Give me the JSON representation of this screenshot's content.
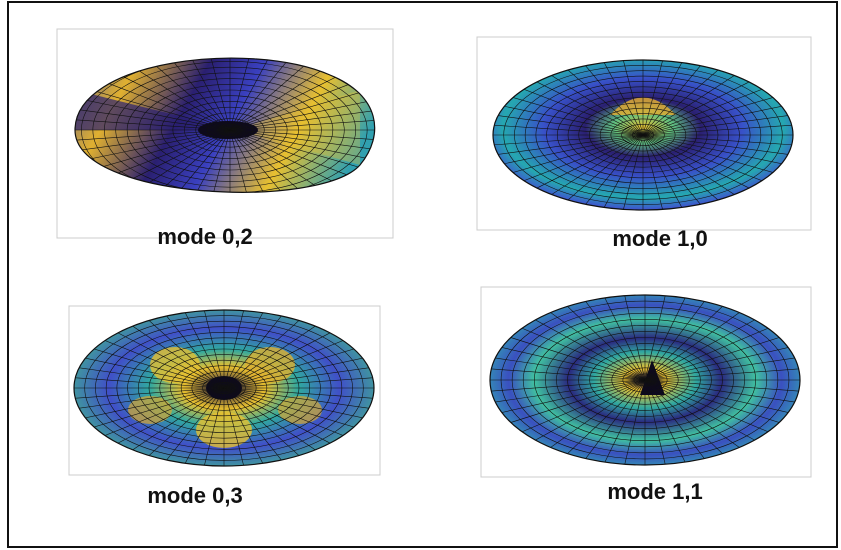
{
  "panels": [
    {
      "label": "mode 0,2"
    },
    {
      "label": "mode 1,0"
    },
    {
      "label": "mode 0,3"
    },
    {
      "label": "mode 1,1"
    }
  ]
}
